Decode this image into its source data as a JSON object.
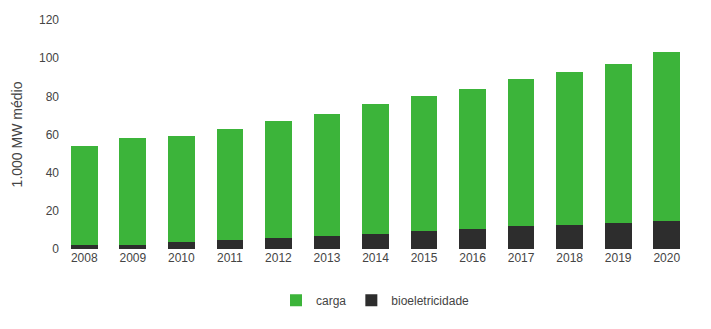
{
  "chart_data": {
    "type": "bar",
    "stacked": true,
    "categories": [
      "2008",
      "2009",
      "2010",
      "2011",
      "2012",
      "2013",
      "2014",
      "2015",
      "2016",
      "2017",
      "2018",
      "2019",
      "2020"
    ],
    "series": [
      {
        "name": "bioeletricidade",
        "color": "#2d2d2d",
        "values": [
          2,
          2,
          3.5,
          4.5,
          6,
          7,
          8,
          9.5,
          10.5,
          12,
          12.5,
          13.5,
          14.5
        ]
      },
      {
        "name": "carga",
        "color": "#3cb43a",
        "values": [
          52,
          56,
          55.5,
          58.5,
          61,
          64,
          68,
          70.5,
          73.5,
          77,
          80.5,
          83.5,
          88.5
        ]
      }
    ],
    "ylabel": "1.000 MW médio",
    "ylim": [
      0,
      120
    ],
    "yticks": [
      0,
      20,
      40,
      60,
      80,
      100,
      120
    ],
    "grid": false,
    "legend": "bottom"
  }
}
